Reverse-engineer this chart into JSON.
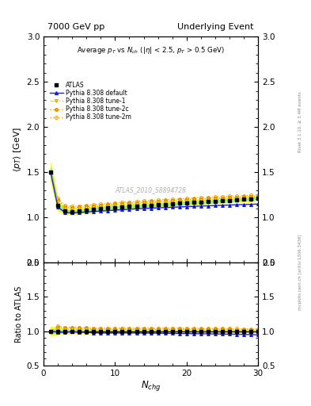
{
  "title_left": "7000 GeV pp",
  "title_right": "Underlying Event",
  "plot_title": "Average $p_T$ vs $N_{ch}$ ($|\\eta|$ < 2.5, $p_T$ > 0.5 GeV)",
  "xlabel": "$N_{chg}$",
  "ylabel_main": "$\\langle p_T \\rangle$ [GeV]",
  "ylabel_ratio": "Ratio to ATLAS",
  "right_label_top": "Rivet 3.1.10, ≥ 3.4M events",
  "right_label_bottom": "mcplots.cern.ch [arXiv:1306.3436]",
  "watermark": "ATLAS_2010_S8894728",
  "ylim_main": [
    0.5,
    3.0
  ],
  "ylim_ratio": [
    0.5,
    2.0
  ],
  "xlim": [
    0,
    30
  ],
  "nch_data": [
    1,
    2,
    3,
    4,
    5,
    6,
    7,
    8,
    9,
    10,
    11,
    12,
    13,
    14,
    15,
    16,
    17,
    18,
    19,
    20,
    21,
    22,
    23,
    24,
    25,
    26,
    27,
    28,
    29,
    30
  ],
  "atlas_y": [
    1.5,
    1.13,
    1.07,
    1.06,
    1.07,
    1.08,
    1.09,
    1.1,
    1.105,
    1.11,
    1.115,
    1.12,
    1.125,
    1.13,
    1.135,
    1.14,
    1.145,
    1.15,
    1.155,
    1.16,
    1.165,
    1.17,
    1.175,
    1.18,
    1.185,
    1.19,
    1.195,
    1.2,
    1.205,
    1.215
  ],
  "atlas_err": [
    0.05,
    0.025,
    0.018,
    0.015,
    0.015,
    0.015,
    0.013,
    0.013,
    0.013,
    0.013,
    0.012,
    0.012,
    0.012,
    0.012,
    0.012,
    0.012,
    0.012,
    0.012,
    0.012,
    0.012,
    0.012,
    0.012,
    0.012,
    0.012,
    0.012,
    0.012,
    0.012,
    0.012,
    0.012,
    0.012
  ],
  "pythia_default_y": [
    1.5,
    1.115,
    1.055,
    1.05,
    1.055,
    1.06,
    1.065,
    1.07,
    1.075,
    1.08,
    1.085,
    1.09,
    1.095,
    1.098,
    1.102,
    1.106,
    1.109,
    1.112,
    1.116,
    1.119,
    1.122,
    1.125,
    1.128,
    1.131,
    1.134,
    1.137,
    1.14,
    1.142,
    1.145,
    1.148
  ],
  "pythia_tune1_y": [
    1.49,
    1.175,
    1.1,
    1.095,
    1.1,
    1.108,
    1.115,
    1.122,
    1.128,
    1.134,
    1.14,
    1.146,
    1.151,
    1.156,
    1.161,
    1.166,
    1.17,
    1.175,
    1.179,
    1.183,
    1.187,
    1.191,
    1.195,
    1.199,
    1.203,
    1.207,
    1.21,
    1.213,
    1.217,
    1.22
  ],
  "pythia_tune2c_y": [
    1.49,
    1.195,
    1.115,
    1.108,
    1.113,
    1.12,
    1.127,
    1.134,
    1.14,
    1.147,
    1.153,
    1.158,
    1.163,
    1.168,
    1.173,
    1.178,
    1.183,
    1.187,
    1.191,
    1.196,
    1.2,
    1.204,
    1.208,
    1.212,
    1.216,
    1.22,
    1.224,
    1.227,
    1.231,
    1.235
  ],
  "pythia_tune2m_y": [
    1.49,
    1.215,
    1.13,
    1.122,
    1.127,
    1.134,
    1.141,
    1.148,
    1.154,
    1.161,
    1.167,
    1.172,
    1.177,
    1.182,
    1.187,
    1.192,
    1.197,
    1.201,
    1.205,
    1.21,
    1.214,
    1.218,
    1.222,
    1.226,
    1.23,
    1.234,
    1.238,
    1.241,
    1.245,
    1.249
  ],
  "color_default": "#1a1aff",
  "color_tune1": "#ffd700",
  "color_tune2c": "#ffa500",
  "color_tune2m": "#ffa500",
  "band_color_green": "#90ee90",
  "band_color_yellow": "#ffff00"
}
